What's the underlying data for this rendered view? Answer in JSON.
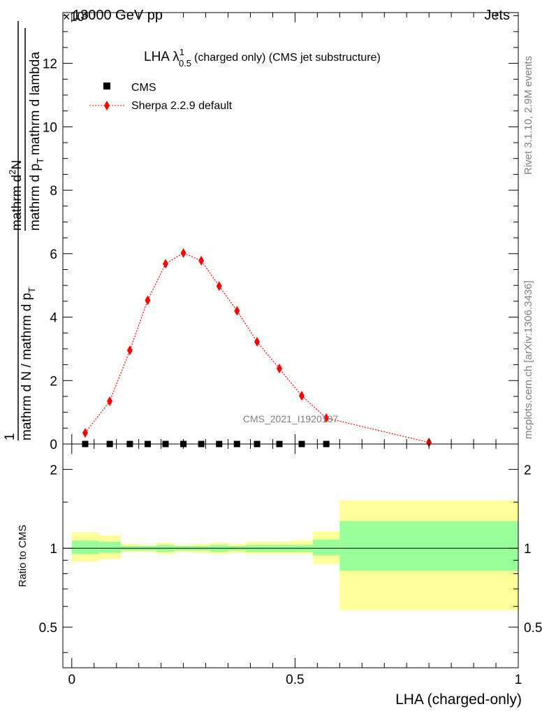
{
  "header": {
    "energy": "13000 GeV pp",
    "process": "Jets",
    "exponent": "×10³"
  },
  "side_texts": {
    "rivet": "Rivet 3.1.10,  2.9M events",
    "mcplots": "mcplots.cern.ch [arXiv:1306.3436]"
  },
  "chart_data": [
    {
      "type": "line",
      "title_main": "LHA λ",
      "title_sup": "1",
      "title_sub": "0.5",
      "title_rest": "(charged only) (CMS jet substructure)",
      "ylabel_top": "1",
      "ylabel_mid": "mathrm d N / mathrm d p",
      "ylabel_mid_sub": "T",
      "ylabel_num": "mathrm d",
      "ylabel_num_sup": "2",
      "ylabel_num_end": "N",
      "ylabel_den": "mathrm d p",
      "ylabel_den_sub": "T",
      "ylabel_den_end": "mathrm d lambda",
      "watermark": "CMS_2021_I1920187",
      "ylim": [
        0,
        13.6
      ],
      "xlim": [
        -0.02,
        1.0
      ],
      "yticks": [
        0,
        2,
        4,
        6,
        8,
        10,
        12
      ],
      "legend_position": "top-left",
      "series": [
        {
          "name": "CMS",
          "color": "#000000",
          "marker": "square",
          "x": [
            0.03,
            0.085,
            0.13,
            0.17,
            0.21,
            0.25,
            0.29,
            0.33,
            0.37,
            0.415,
            0.465,
            0.515,
            0.57
          ],
          "values": [
            0,
            0,
            0,
            0,
            0,
            0,
            0,
            0,
            0,
            0,
            0,
            0,
            0
          ]
        },
        {
          "name": "Sherpa 2.2.9 default",
          "color": "#ff0000",
          "marker": "diamond",
          "line": "dotted",
          "x": [
            0.03,
            0.085,
            0.13,
            0.17,
            0.21,
            0.25,
            0.29,
            0.33,
            0.37,
            0.415,
            0.465,
            0.515,
            0.57,
            0.8
          ],
          "values": [
            0.35,
            1.35,
            2.95,
            4.53,
            5.68,
            6.02,
            5.78,
            4.98,
            4.2,
            3.22,
            2.38,
            1.52,
            0.82,
            0.05
          ]
        }
      ]
    },
    {
      "type": "area",
      "ylabel": "Ratio to CMS",
      "xlabel": "LHA (charged-only)",
      "ylog": true,
      "ylim": [
        0.35,
        2.5
      ],
      "xlim": [
        -0.02,
        1.0
      ],
      "yticks": [
        0.5,
        1,
        2
      ],
      "ytick_labels": [
        "0.5",
        "1",
        "2"
      ],
      "xticks": [
        0,
        0.5,
        1
      ],
      "xtick_labels": [
        "0",
        "0.5",
        "1"
      ],
      "reference_line": 1,
      "bands": [
        {
          "x0": 0.0,
          "x1": 0.06,
          "green": [
            0.95,
            1.07
          ],
          "yellow": [
            0.89,
            1.15
          ]
        },
        {
          "x0": 0.06,
          "x1": 0.11,
          "green": [
            0.96,
            1.06
          ],
          "yellow": [
            0.91,
            1.12
          ]
        },
        {
          "x0": 0.11,
          "x1": 0.15,
          "green": [
            0.98,
            1.02
          ],
          "yellow": [
            0.97,
            1.04
          ]
        },
        {
          "x0": 0.15,
          "x1": 0.19,
          "green": [
            0.98,
            1.02
          ],
          "yellow": [
            0.97,
            1.03
          ]
        },
        {
          "x0": 0.19,
          "x1": 0.23,
          "green": [
            0.97,
            1.03
          ],
          "yellow": [
            0.95,
            1.05
          ]
        },
        {
          "x0": 0.23,
          "x1": 0.27,
          "green": [
            0.98,
            1.02
          ],
          "yellow": [
            0.97,
            1.03
          ]
        },
        {
          "x0": 0.27,
          "x1": 0.31,
          "green": [
            0.98,
            1.02
          ],
          "yellow": [
            0.96,
            1.04
          ]
        },
        {
          "x0": 0.31,
          "x1": 0.35,
          "green": [
            0.97,
            1.03
          ],
          "yellow": [
            0.95,
            1.05
          ]
        },
        {
          "x0": 0.35,
          "x1": 0.39,
          "green": [
            0.98,
            1.02
          ],
          "yellow": [
            0.96,
            1.04
          ]
        },
        {
          "x0": 0.39,
          "x1": 0.44,
          "green": [
            0.97,
            1.03
          ],
          "yellow": [
            0.95,
            1.06
          ]
        },
        {
          "x0": 0.44,
          "x1": 0.49,
          "green": [
            0.97,
            1.03
          ],
          "yellow": [
            0.95,
            1.06
          ]
        },
        {
          "x0": 0.49,
          "x1": 0.54,
          "green": [
            0.97,
            1.03
          ],
          "yellow": [
            0.95,
            1.07
          ]
        },
        {
          "x0": 0.54,
          "x1": 0.6,
          "green": [
            0.94,
            1.08
          ],
          "yellow": [
            0.87,
            1.16
          ]
        },
        {
          "x0": 0.6,
          "x1": 1.0,
          "green": [
            0.82,
            1.27
          ],
          "yellow": [
            0.58,
            1.52
          ]
        }
      ]
    }
  ],
  "colors": {
    "green_band": "#99ff99",
    "yellow_band": "#ffff99",
    "sherpa": "#ff0000",
    "cms": "#000000"
  }
}
